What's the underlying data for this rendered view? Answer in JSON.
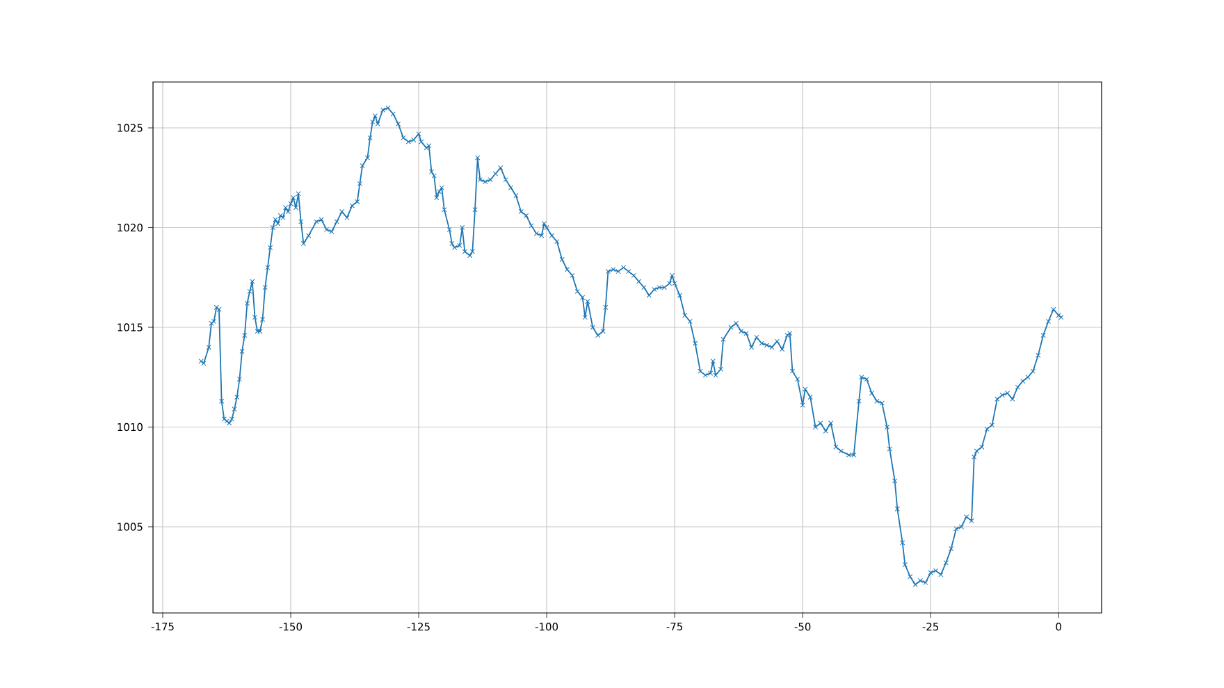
{
  "chart_data": {
    "type": "line",
    "marker": "cross",
    "line_style": "solid",
    "grid": true,
    "xlim": [
      -176.9,
      8.4
    ],
    "ylim": [
      1000.68,
      1027.3
    ],
    "xticks": [
      -175,
      -150,
      -125,
      -100,
      -75,
      -50,
      -25,
      0
    ],
    "yticks": [
      1005,
      1010,
      1015,
      1020,
      1025
    ],
    "series": [
      {
        "color": "#1f77b4",
        "x": [
          -167.5,
          -167,
          -166,
          -165.5,
          -165,
          -164.5,
          -164,
          -163.5,
          -163,
          -162.5,
          -162,
          -161.5,
          -161,
          -160.5,
          -160,
          -159.5,
          -159,
          -158.5,
          -158,
          -157.5,
          -157,
          -156.5,
          -156,
          -155.5,
          -155,
          -154.5,
          -154,
          -153.5,
          -153,
          -152.5,
          -152,
          -151.5,
          -151,
          -150.5,
          -150,
          -149.5,
          -149,
          -148.5,
          -148,
          -147.5,
          -146.5,
          -145,
          -144,
          -143,
          -142,
          -141,
          -140,
          -139,
          -138,
          -137,
          -136.5,
          -136,
          -135,
          -134.5,
          -134,
          -133.5,
          -133,
          -132,
          -131,
          -130,
          -129,
          -128,
          -127,
          -126,
          -125,
          -124.5,
          -123.5,
          -123,
          -122.5,
          -122,
          -121.5,
          -121,
          -120.5,
          -120,
          -119,
          -118.5,
          -118,
          -117,
          -116.5,
          -116,
          -115,
          -114.5,
          -114,
          -113.5,
          -113,
          -112,
          -111,
          -110,
          -109,
          -108,
          -107,
          -106,
          -105,
          -104,
          -103,
          -102,
          -101,
          -100.5,
          -100,
          -99,
          -98,
          -97,
          -96,
          -95,
          -94,
          -93,
          -92.5,
          -92,
          -91,
          -90,
          -89,
          -88.5,
          -88,
          -87,
          -86,
          -85,
          -84,
          -83,
          -82,
          -81,
          -80,
          -79,
          -78,
          -77,
          -76,
          -75.5,
          -75,
          -74,
          -73,
          -72,
          -71,
          -70,
          -69,
          -68,
          -67.5,
          -67,
          -66,
          -65.5,
          -64,
          -63,
          -62,
          -61,
          -60,
          -59,
          -58,
          -57,
          -56,
          -55,
          -54,
          -53,
          -52.5,
          -52,
          -51,
          -50,
          -49.5,
          -48.5,
          -47.5,
          -46.5,
          -45.5,
          -44.5,
          -43.5,
          -42.5,
          -41,
          -40,
          -39,
          -38.5,
          -37.5,
          -36.5,
          -35.5,
          -34.5,
          -33.5,
          -33,
          -32,
          -31.5,
          -30.5,
          -30,
          -29,
          -28,
          -27,
          -26,
          -25,
          -24,
          -23,
          -22,
          -21,
          -20,
          -19,
          -18,
          -17,
          -16.5,
          -16,
          -15,
          -14,
          -13,
          -12,
          -11,
          -10,
          -9,
          -8,
          -7,
          -6,
          -5,
          -4,
          -3,
          -2,
          -1,
          0,
          0.5
        ],
        "values": [
          1013.3,
          1013.2,
          1014.0,
          1015.2,
          1015.3,
          1016.0,
          1015.9,
          1011.3,
          1010.4,
          1010.3,
          1010.2,
          1010.4,
          1010.9,
          1011.5,
          1012.4,
          1013.8,
          1014.6,
          1016.2,
          1016.8,
          1017.3,
          1015.5,
          1014.8,
          1014.8,
          1015.4,
          1017.0,
          1018.0,
          1019.0,
          1020.0,
          1020.4,
          1020.2,
          1020.6,
          1020.5,
          1021.0,
          1020.8,
          1021.2,
          1021.5,
          1021.0,
          1021.7,
          1020.3,
          1019.2,
          1019.6,
          1020.3,
          1020.4,
          1019.9,
          1019.8,
          1020.3,
          1020.8,
          1020.5,
          1021.1,
          1021.3,
          1022.2,
          1023.1,
          1023.5,
          1024.5,
          1025.3,
          1025.6,
          1025.2,
          1025.9,
          1026.0,
          1025.7,
          1025.2,
          1024.5,
          1024.3,
          1024.4,
          1024.7,
          1024.3,
          1024.0,
          1024.1,
          1022.8,
          1022.6,
          1021.5,
          1021.8,
          1022.0,
          1020.9,
          1019.9,
          1019.2,
          1019.0,
          1019.1,
          1020.0,
          1018.8,
          1018.6,
          1018.8,
          1020.9,
          1023.5,
          1022.4,
          1022.3,
          1022.4,
          1022.7,
          1023.0,
          1022.4,
          1022.0,
          1021.6,
          1020.8,
          1020.6,
          1020.1,
          1019.7,
          1019.6,
          1020.2,
          1020.0,
          1019.6,
          1019.3,
          1018.4,
          1017.9,
          1017.6,
          1016.8,
          1016.5,
          1015.5,
          1016.3,
          1015.0,
          1014.6,
          1014.8,
          1016.0,
          1017.8,
          1017.9,
          1017.8,
          1018.0,
          1017.8,
          1017.6,
          1017.3,
          1017.0,
          1016.6,
          1016.9,
          1017.0,
          1017.0,
          1017.2,
          1017.6,
          1017.2,
          1016.6,
          1015.6,
          1015.3,
          1014.2,
          1012.8,
          1012.6,
          1012.7,
          1013.3,
          1012.6,
          1012.9,
          1014.4,
          1015.0,
          1015.2,
          1014.8,
          1014.7,
          1014.0,
          1014.5,
          1014.2,
          1014.1,
          1014.0,
          1014.3,
          1013.9,
          1014.6,
          1014.7,
          1012.8,
          1012.4,
          1011.1,
          1011.9,
          1011.5,
          1010.0,
          1010.2,
          1009.8,
          1010.2,
          1009.0,
          1008.8,
          1008.6,
          1008.6,
          1011.3,
          1012.5,
          1012.4,
          1011.7,
          1011.3,
          1011.2,
          1010.0,
          1008.9,
          1007.3,
          1005.9,
          1004.2,
          1003.1,
          1002.5,
          1002.1,
          1002.3,
          1002.2,
          1002.7,
          1002.8,
          1002.6,
          1003.2,
          1003.9,
          1004.9,
          1005.0,
          1005.5,
          1005.3,
          1008.5,
          1008.8,
          1009.0,
          1009.9,
          1010.1,
          1011.4,
          1011.6,
          1011.7,
          1011.4,
          1012.0,
          1012.3,
          1012.5,
          1012.8,
          1013.6,
          1014.6,
          1015.3,
          1015.9,
          1015.6,
          1015.5
        ]
      }
    ]
  }
}
